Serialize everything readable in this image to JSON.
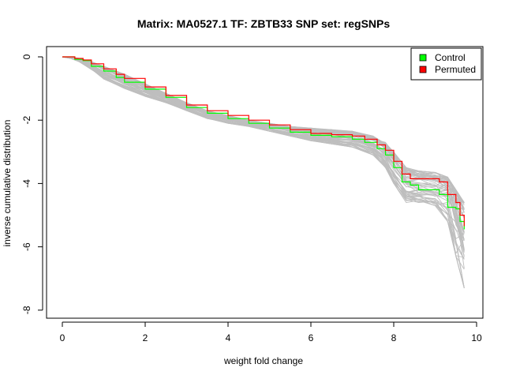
{
  "chart_data": {
    "type": "line",
    "title": "Matrix: MA0527.1 TF: ZBTB33 SNP set: regSNPs",
    "xlabel": "weight fold change",
    "ylabel": "inverse cumulative distribution",
    "xlim": [
      0,
      10
    ],
    "ylim": [
      -8,
      0
    ],
    "xticks": [
      0,
      2,
      4,
      6,
      8,
      10
    ],
    "yticks": [
      0,
      -2,
      -4,
      -6,
      -8
    ],
    "grid": false,
    "legend": {
      "position": "top-right",
      "entries": [
        {
          "label": "Control",
          "color": "#00ff00"
        },
        {
          "label": "Permuted",
          "color": "#ff0000"
        }
      ]
    },
    "background_curves": {
      "color": "#bebebe",
      "description_count": 60,
      "x": [
        0,
        0.2,
        0.4,
        0.7,
        1.0,
        1.5,
        2.0,
        2.5,
        3.0,
        3.5,
        4.0,
        4.5,
        5.0,
        5.5,
        6.0,
        6.5,
        7.0,
        7.5,
        7.8,
        8.0,
        8.3,
        8.6,
        9.0,
        9.3,
        9.5,
        9.7
      ],
      "envelope_upper": [
        0,
        0,
        -0.05,
        -0.15,
        -0.3,
        -0.55,
        -0.85,
        -1.15,
        -1.45,
        -1.7,
        -1.85,
        -2.0,
        -2.1,
        -2.2,
        -2.25,
        -2.3,
        -2.35,
        -2.5,
        -2.7,
        -3.0,
        -3.5,
        -3.6,
        -3.65,
        -3.8,
        -4.2,
        -4.6
      ],
      "envelope_lower": [
        0,
        -0.05,
        -0.15,
        -0.4,
        -0.7,
        -1.0,
        -1.25,
        -1.45,
        -1.7,
        -1.95,
        -2.1,
        -2.2,
        -2.35,
        -2.5,
        -2.65,
        -2.75,
        -2.85,
        -3.1,
        -3.5,
        -4.0,
        -4.6,
        -4.6,
        -4.7,
        -5.2,
        -6.3,
        -7.3
      ]
    },
    "series": [
      {
        "name": "Control",
        "color": "#00ff00",
        "x": [
          0,
          0.2,
          0.3,
          0.5,
          0.7,
          1.0,
          1.3,
          1.5,
          2.0,
          2.5,
          3.0,
          3.5,
          4.0,
          4.5,
          5.0,
          5.5,
          6.0,
          6.5,
          7.0,
          7.3,
          7.6,
          7.8,
          8.0,
          8.2,
          8.4,
          8.6,
          8.8,
          9.0,
          9.1,
          9.2,
          9.3,
          9.5,
          9.6,
          9.7
        ],
        "y": [
          0,
          0,
          -0.08,
          -0.12,
          -0.3,
          -0.45,
          -0.65,
          -0.8,
          -1.02,
          -1.28,
          -1.6,
          -1.78,
          -1.95,
          -2.1,
          -2.25,
          -2.38,
          -2.48,
          -2.52,
          -2.6,
          -2.7,
          -2.9,
          -3.1,
          -3.5,
          -3.95,
          -4.05,
          -4.2,
          -4.2,
          -4.2,
          -4.35,
          -4.35,
          -4.75,
          -4.8,
          -5.2,
          -5.45
        ]
      },
      {
        "name": "Permuted",
        "color": "#ff0000",
        "x": [
          0,
          0.2,
          0.3,
          0.5,
          0.7,
          1.0,
          1.3,
          1.5,
          2.0,
          2.5,
          3.0,
          3.5,
          4.0,
          4.5,
          5.0,
          5.5,
          6.0,
          6.5,
          7.0,
          7.3,
          7.6,
          7.8,
          8.0,
          8.2,
          8.4,
          8.6,
          8.8,
          9.0,
          9.1,
          9.2,
          9.3,
          9.5,
          9.6,
          9.7
        ],
        "y": [
          0,
          0,
          -0.05,
          -0.1,
          -0.22,
          -0.38,
          -0.55,
          -0.68,
          -0.95,
          -1.22,
          -1.52,
          -1.7,
          -1.85,
          -2.0,
          -2.15,
          -2.3,
          -2.42,
          -2.46,
          -2.5,
          -2.6,
          -2.78,
          -2.95,
          -3.3,
          -3.7,
          -3.85,
          -3.85,
          -3.85,
          -3.85,
          -3.95,
          -3.95,
          -4.35,
          -4.6,
          -5.0,
          -5.35
        ]
      }
    ]
  }
}
